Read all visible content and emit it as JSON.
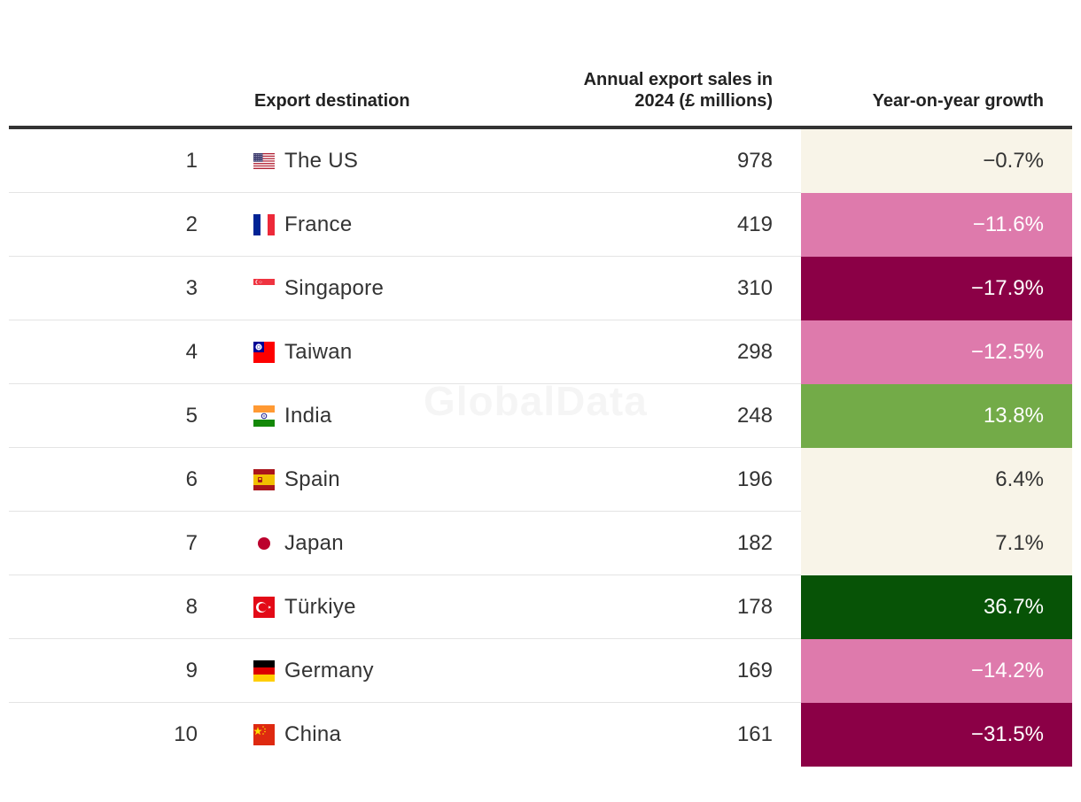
{
  "chart_data": {
    "type": "table",
    "columns": [
      "",
      "Export destination",
      "Annual export sales in 2024 (£ millions)",
      "Year-on-year growth"
    ],
    "rows": [
      {
        "rank": "1",
        "country": "The US",
        "flag": "us-flag-icon",
        "value": "978",
        "growth": "−0.7%",
        "growth_num": -0.7,
        "bg": "#f8f4e8",
        "fg": "#333333"
      },
      {
        "rank": "2",
        "country": "France",
        "flag": "france-flag-icon",
        "value": "419",
        "growth": "−11.6%",
        "growth_num": -11.6,
        "bg": "#de7aac",
        "fg": "#ffffff"
      },
      {
        "rank": "3",
        "country": "Singapore",
        "flag": "singapore-flag-icon",
        "value": "310",
        "growth": "−17.9%",
        "growth_num": -17.9,
        "bg": "#8b0046",
        "fg": "#ffffff"
      },
      {
        "rank": "4",
        "country": "Taiwan",
        "flag": "taiwan-flag-icon",
        "value": "298",
        "growth": "−12.5%",
        "growth_num": -12.5,
        "bg": "#de7aac",
        "fg": "#ffffff"
      },
      {
        "rank": "5",
        "country": "India",
        "flag": "india-flag-icon",
        "value": "248",
        "growth": "13.8%",
        "growth_num": 13.8,
        "bg": "#73ab48",
        "fg": "#ffffff"
      },
      {
        "rank": "6",
        "country": "Spain",
        "flag": "spain-flag-icon",
        "value": "196",
        "growth": "6.4%",
        "growth_num": 6.4,
        "bg": "#f8f4e8",
        "fg": "#333333"
      },
      {
        "rank": "7",
        "country": "Japan",
        "flag": "japan-flag-icon",
        "value": "182",
        "growth": "7.1%",
        "growth_num": 7.1,
        "bg": "#f8f4e8",
        "fg": "#333333"
      },
      {
        "rank": "8",
        "country": "Türkiye",
        "flag": "turkiye-flag-icon",
        "value": "178",
        "growth": "36.7%",
        "growth_num": 36.7,
        "bg": "#075306",
        "fg": "#ffffff"
      },
      {
        "rank": "9",
        "country": "Germany",
        "flag": "germany-flag-icon",
        "value": "169",
        "growth": "−14.2%",
        "growth_num": -14.2,
        "bg": "#de7aac",
        "fg": "#ffffff"
      },
      {
        "rank": "10",
        "country": "China",
        "flag": "china-flag-icon",
        "value": "161",
        "growth": "−31.5%",
        "growth_num": -31.5,
        "bg": "#8b0046",
        "fg": "#ffffff"
      }
    ]
  },
  "header": {
    "dest_label": "Export destination",
    "sales_line1": "Annual export sales in",
    "sales_line2": "2024 (£ millions)",
    "growth_label": "Year-on-year growth"
  },
  "watermark": "GlobalData"
}
